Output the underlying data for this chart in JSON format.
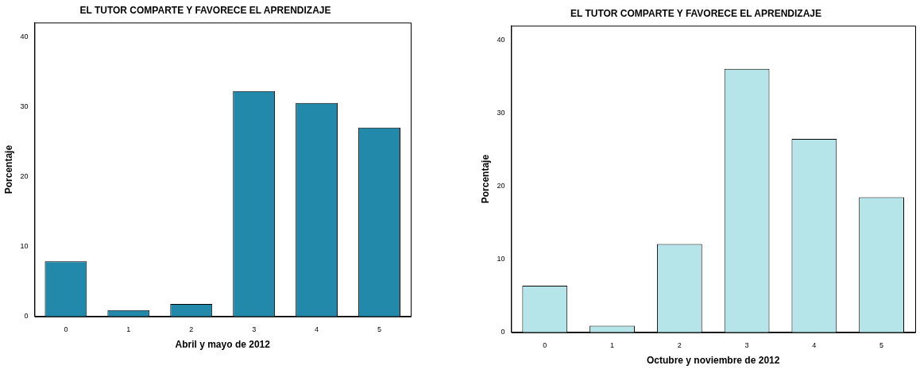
{
  "chart_data": [
    {
      "type": "bar",
      "title": "EL TUTOR COMPARTE Y FAVORECE EL APRENDIZAJE",
      "xlabel": "Abril y mayo de 2012",
      "ylabel": "Porcentaje",
      "categories": [
        "0",
        "1",
        "2",
        "3",
        "4",
        "5"
      ],
      "values": [
        7.9,
        0.9,
        1.8,
        32.2,
        30.5,
        27.0
      ],
      "color": "#2389ab",
      "ylim": [
        0,
        42
      ],
      "yticks": [
        0,
        10,
        20,
        30,
        40
      ],
      "grid": false,
      "legend": false
    },
    {
      "type": "bar",
      "title": "EL TUTOR COMPARTE Y FAVORECE EL APRENDIZAJE",
      "xlabel": "Octubre y noviembre de 2012",
      "ylabel": "Porcentaje",
      "categories": [
        "0",
        "1",
        "2",
        "3",
        "4",
        "5"
      ],
      "values": [
        6.4,
        0.9,
        12.1,
        36.1,
        26.5,
        18.5
      ],
      "color": "#b5e5e8",
      "ylim": [
        0,
        42
      ],
      "yticks": [
        0,
        10,
        20,
        30,
        40
      ],
      "grid": false,
      "legend": false
    }
  ]
}
